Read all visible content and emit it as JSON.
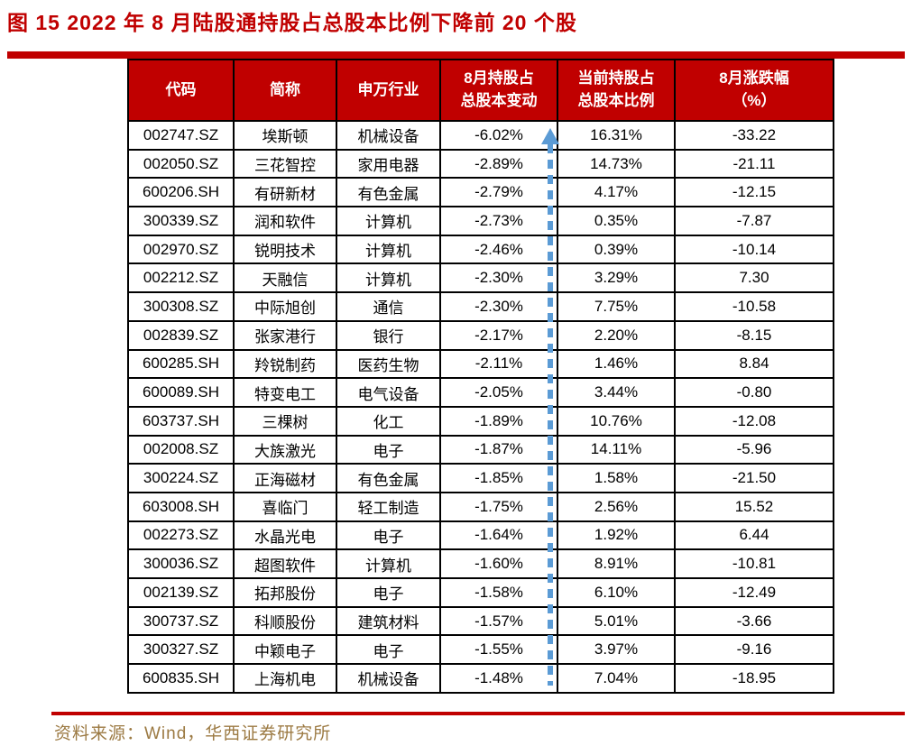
{
  "title": "图 15  2022 年 8 月陆股通持股占总股本比例下降前 20 个股",
  "source": "资料来源：Wind，华西证券研究所",
  "colors": {
    "accent_red": "#C00000",
    "header_bg": "#C00000",
    "header_text": "#FFFFFF",
    "body_text": "#000000",
    "arrow_blue": "#5B9BD5",
    "source_text": "#9C7A43",
    "border": "#000000"
  },
  "arrow": {
    "name": "dashed-up-arrow",
    "direction": "up",
    "style": "dashed"
  },
  "table": {
    "headers": [
      "代码",
      "简称",
      "申万行业",
      "8月持股占\n总股本变动",
      "当前持股占\n总股本比例",
      "8月涨跌幅\n（%）"
    ],
    "rows": [
      [
        "002747.SZ",
        "埃斯顿",
        "机械设备",
        "-6.02%",
        "16.31%",
        "-33.22"
      ],
      [
        "002050.SZ",
        "三花智控",
        "家用电器",
        "-2.89%",
        "14.73%",
        "-21.11"
      ],
      [
        "600206.SH",
        "有研新材",
        "有色金属",
        "-2.79%",
        "4.17%",
        "-12.15"
      ],
      [
        "300339.SZ",
        "润和软件",
        "计算机",
        "-2.73%",
        "0.35%",
        "-7.87"
      ],
      [
        "002970.SZ",
        "锐明技术",
        "计算机",
        "-2.46%",
        "0.39%",
        "-10.14"
      ],
      [
        "002212.SZ",
        "天融信",
        "计算机",
        "-2.30%",
        "3.29%",
        "7.30"
      ],
      [
        "300308.SZ",
        "中际旭创",
        "通信",
        "-2.30%",
        "7.75%",
        "-10.58"
      ],
      [
        "002839.SZ",
        "张家港行",
        "银行",
        "-2.17%",
        "2.20%",
        "-8.15"
      ],
      [
        "600285.SH",
        "羚锐制药",
        "医药生物",
        "-2.11%",
        "1.46%",
        "8.84"
      ],
      [
        "600089.SH",
        "特变电工",
        "电气设备",
        "-2.05%",
        "3.44%",
        "-0.80"
      ],
      [
        "603737.SH",
        "三棵树",
        "化工",
        "-1.89%",
        "10.76%",
        "-12.08"
      ],
      [
        "002008.SZ",
        "大族激光",
        "电子",
        "-1.87%",
        "14.11%",
        "-5.96"
      ],
      [
        "300224.SZ",
        "正海磁材",
        "有色金属",
        "-1.85%",
        "1.58%",
        "-21.50"
      ],
      [
        "603008.SH",
        "喜临门",
        "轻工制造",
        "-1.75%",
        "2.56%",
        "15.52"
      ],
      [
        "002273.SZ",
        "水晶光电",
        "电子",
        "-1.64%",
        "1.92%",
        "6.44"
      ],
      [
        "300036.SZ",
        "超图软件",
        "计算机",
        "-1.60%",
        "8.91%",
        "-10.81"
      ],
      [
        "002139.SZ",
        "拓邦股份",
        "电子",
        "-1.58%",
        "6.10%",
        "-12.49"
      ],
      [
        "300737.SZ",
        "科顺股份",
        "建筑材料",
        "-1.57%",
        "5.01%",
        "-3.66"
      ],
      [
        "300327.SZ",
        "中颖电子",
        "电子",
        "-1.55%",
        "3.97%",
        "-9.16"
      ],
      [
        "600835.SH",
        "上海机电",
        "机械设备",
        "-1.48%",
        "7.04%",
        "-18.95"
      ]
    ]
  }
}
